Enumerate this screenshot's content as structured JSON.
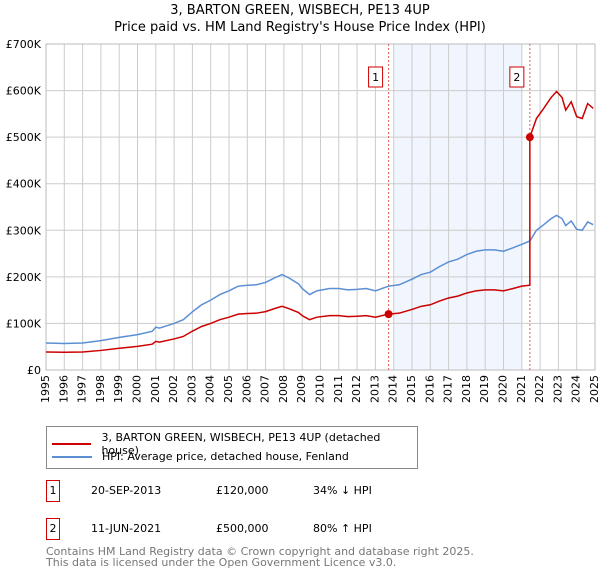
{
  "title": "3, BARTON GREEN, WISBECH, PE13 4UP",
  "subtitle": "Price paid vs. HM Land Registry's House Price Index (HPI)",
  "chart_data": {
    "type": "line",
    "xlim": [
      1995,
      2025
    ],
    "ylim": [
      0,
      700000
    ],
    "yticks": [
      0,
      100000,
      200000,
      300000,
      400000,
      500000,
      600000,
      700000
    ],
    "ytick_labels": [
      "£0",
      "£100K",
      "£200K",
      "£300K",
      "£400K",
      "£500K",
      "£600K",
      "£700K"
    ],
    "xticks": [
      1995,
      1996,
      1997,
      1998,
      1999,
      2000,
      2001,
      2002,
      2003,
      2004,
      2005,
      2006,
      2007,
      2008,
      2009,
      2010,
      2011,
      2012,
      2013,
      2014,
      2015,
      2016,
      2017,
      2018,
      2019,
      2020,
      2021,
      2022,
      2023,
      2024,
      2025
    ],
    "grid": true,
    "shaded_range": [
      2014.0,
      2021.05
    ],
    "series": [
      {
        "name": "3, BARTON GREEN, WISBECH, PE13 4UP (detached house)",
        "color": "#cc0000",
        "x": [
          1995,
          1996,
          1997,
          1998,
          1999,
          2000,
          2000.8,
          2001,
          2001.2,
          2002,
          2002.5,
          2003,
          2003.5,
          2004,
          2004.5,
          2005,
          2005.5,
          2006,
          2006.5,
          2007,
          2007.5,
          2007.9,
          2008.3,
          2008.8,
          2009,
          2009.4,
          2009.8,
          2010.5,
          2011,
          2011.5,
          2012,
          2012.5,
          2013,
          2013.72,
          2014.3,
          2015,
          2015.5,
          2016,
          2016.5,
          2017,
          2017.5,
          2018,
          2018.5,
          2019,
          2019.5,
          2020,
          2020.5,
          2021,
          2021.44,
          2021.44,
          2021.8,
          2022.2,
          2022.6,
          2022.9,
          2023.2,
          2023.4,
          2023.7,
          2024,
          2024.3,
          2024.6,
          2024.9
        ],
        "y": [
          38700,
          38000,
          38700,
          42000,
          46700,
          50700,
          55400,
          61400,
          60000,
          66700,
          72000,
          83400,
          93400,
          100000,
          108000,
          113400,
          120000,
          121400,
          122000,
          125400,
          132000,
          136700,
          131400,
          123400,
          116700,
          108000,
          113400,
          116700,
          116700,
          114700,
          115400,
          116700,
          113400,
          120000,
          122000,
          130000,
          136700,
          140000,
          148000,
          154700,
          158700,
          165400,
          170000,
          172000,
          172000,
          170000,
          174700,
          180000,
          182000,
          500000,
          540000,
          562000,
          585000,
          598000,
          585000,
          558000,
          576000,
          544000,
          540000,
          572000,
          562000
        ]
      },
      {
        "name": "HPI: Average price, detached house, Fenland",
        "color": "#5b8fd4",
        "x": [
          1995,
          1996,
          1997,
          1998,
          1999,
          2000,
          2000.8,
          2001,
          2001.2,
          2002,
          2002.5,
          2003,
          2003.5,
          2004,
          2004.5,
          2005,
          2005.5,
          2006,
          2006.5,
          2007,
          2007.5,
          2007.9,
          2008.3,
          2008.8,
          2009,
          2009.4,
          2009.8,
          2010.5,
          2011,
          2011.5,
          2012,
          2012.5,
          2013,
          2013.72,
          2014.3,
          2015,
          2015.5,
          2016,
          2016.5,
          2017,
          2017.5,
          2018,
          2018.5,
          2019,
          2019.5,
          2020,
          2020.5,
          2021,
          2021.44,
          2021.8,
          2022.2,
          2022.6,
          2022.9,
          2023.2,
          2023.4,
          2023.7,
          2024,
          2024.3,
          2024.6,
          2024.9
        ],
        "y": [
          58000,
          57000,
          58000,
          63000,
          70000,
          76000,
          83000,
          92000,
          90000,
          100000,
          108000,
          125000,
          140000,
          150000,
          162000,
          170000,
          180000,
          182000,
          183000,
          188000,
          198000,
          205000,
          197000,
          185000,
          175000,
          162000,
          170000,
          175000,
          175000,
          172000,
          173000,
          175000,
          170000,
          180000,
          183000,
          195000,
          205000,
          210000,
          222000,
          232000,
          238000,
          248000,
          255000,
          258000,
          258000,
          255000,
          262000,
          270000,
          277000,
          300000,
          312000,
          325000,
          332000,
          325000,
          310000,
          320000,
          302000,
          300000,
          318000,
          312000
        ]
      }
    ],
    "sales": [
      {
        "label": "1",
        "x": 2013.72,
        "y": 120000
      },
      {
        "label": "2",
        "x": 2021.44,
        "y": 500000
      }
    ]
  },
  "legend": {
    "property": "3, BARTON GREEN, WISBECH, PE13 4UP (detached house)",
    "hpi": "HPI: Average price, detached house, Fenland"
  },
  "sales_table": [
    {
      "num": "1",
      "date": "20-SEP-2013",
      "price": "£120,000",
      "hpi": "34% ↓ HPI"
    },
    {
      "num": "2",
      "date": "11-JUN-2021",
      "price": "£500,000",
      "hpi": "80% ↑ HPI"
    }
  ],
  "footer": {
    "line1": "Contains HM Land Registry data © Crown copyright and database right 2025.",
    "line2": "This data is licensed under the Open Government Licence v3.0."
  }
}
